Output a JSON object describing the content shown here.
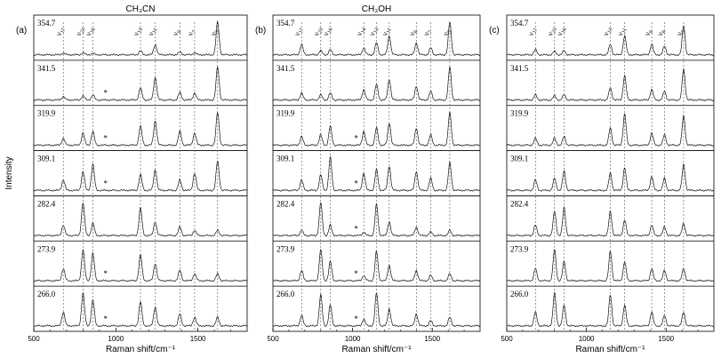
{
  "figure": {
    "x_title": "Raman shift/cm⁻¹",
    "y_title": "Intensity",
    "xlim": [
      500,
      1800
    ],
    "x_ticks": [
      500,
      1000,
      1500
    ]
  },
  "chart_data": [
    {
      "type": "line",
      "panel_label": "(a)",
      "solvent": "CH₃CN",
      "excitation_labels": [
        "354.7",
        "341.5",
        "319.9",
        "309.1",
        "282.4",
        "273.9",
        "266.0"
      ],
      "mode_labels": [
        {
          "label": "ν17",
          "x": 680
        },
        {
          "label": "ν23",
          "x": 800
        },
        {
          "label": "ν16",
          "x": 860
        },
        {
          "label": "ν13",
          "x": 1150
        },
        {
          "label": "ν11",
          "x": 1240
        },
        {
          "label": "ν8",
          "x": 1390
        },
        {
          "label": "ν7",
          "x": 1480
        },
        {
          "label": "ν5",
          "x": 1620
        }
      ],
      "series": [
        {
          "excitation": "354.7",
          "peaks": [
            [
              680,
              0.05
            ],
            [
              800,
              0.06
            ],
            [
              860,
              0.04
            ],
            [
              1150,
              0.12
            ],
            [
              1240,
              0.3
            ],
            [
              1390,
              0.08
            ],
            [
              1480,
              0.06
            ],
            [
              1620,
              0.95
            ]
          ]
        },
        {
          "excitation": "341.5",
          "peaks": [
            [
              680,
              0.1
            ],
            [
              800,
              0.12
            ],
            [
              860,
              0.14
            ],
            [
              1150,
              0.35
            ],
            [
              1240,
              0.65
            ],
            [
              1390,
              0.22
            ],
            [
              1480,
              0.2
            ],
            [
              1620,
              0.95
            ]
          ]
        },
        {
          "excitation": "319.9",
          "peaks": [
            [
              680,
              0.2
            ],
            [
              800,
              0.35
            ],
            [
              860,
              0.4
            ],
            [
              1150,
              0.55
            ],
            [
              1240,
              0.7
            ],
            [
              1390,
              0.4
            ],
            [
              1480,
              0.35
            ],
            [
              1620,
              0.95
            ]
          ]
        },
        {
          "excitation": "309.1",
          "peaks": [
            [
              680,
              0.3
            ],
            [
              800,
              0.55
            ],
            [
              860,
              0.75
            ],
            [
              1150,
              0.45
            ],
            [
              1240,
              0.6
            ],
            [
              1390,
              0.3
            ],
            [
              1480,
              0.5
            ],
            [
              1620,
              0.85
            ]
          ]
        },
        {
          "excitation": "282.4",
          "peaks": [
            [
              680,
              0.3
            ],
            [
              800,
              0.95
            ],
            [
              860,
              0.35
            ],
            [
              1150,
              0.8
            ],
            [
              1240,
              0.4
            ],
            [
              1390,
              0.25
            ],
            [
              1480,
              0.15
            ],
            [
              1620,
              0.15
            ]
          ]
        },
        {
          "excitation": "273.9",
          "peaks": [
            [
              680,
              0.35
            ],
            [
              800,
              0.9
            ],
            [
              860,
              0.8
            ],
            [
              1150,
              0.75
            ],
            [
              1240,
              0.5
            ],
            [
              1390,
              0.3
            ],
            [
              1480,
              0.2
            ],
            [
              1620,
              0.2
            ]
          ]
        },
        {
          "excitation": "266.0",
          "peaks": [
            [
              680,
              0.4
            ],
            [
              800,
              0.95
            ],
            [
              860,
              0.75
            ],
            [
              1150,
              0.7
            ],
            [
              1240,
              0.55
            ],
            [
              1390,
              0.35
            ],
            [
              1480,
              0.25
            ],
            [
              1620,
              0.25
            ]
          ]
        }
      ],
      "asterisk_rows": [
        "341.5",
        "319.9",
        "309.1",
        "273.9",
        "266.0"
      ]
    },
    {
      "type": "line",
      "panel_label": "(b)",
      "solvent": "CH₃OH",
      "excitation_labels": [
        "354.7",
        "341.5",
        "319.9",
        "309.1",
        "282.4",
        "273.9",
        "266.0"
      ],
      "mode_labels": [
        {
          "label": "ν17",
          "x": 680
        },
        {
          "label": "ν23",
          "x": 800
        },
        {
          "label": "ν16",
          "x": 860
        },
        {
          "label": "ν14",
          "x": 1070
        },
        {
          "label": "ν13",
          "x": 1150
        },
        {
          "label": "ν11",
          "x": 1230
        },
        {
          "label": "ν8",
          "x": 1400
        },
        {
          "label": "ν7",
          "x": 1490
        },
        {
          "label": "ν5",
          "x": 1610
        }
      ],
      "series": [
        {
          "excitation": "354.7",
          "peaks": [
            [
              680,
              0.3
            ],
            [
              800,
              0.12
            ],
            [
              860,
              0.15
            ],
            [
              1070,
              0.2
            ],
            [
              1150,
              0.35
            ],
            [
              1230,
              0.55
            ],
            [
              1400,
              0.35
            ],
            [
              1490,
              0.2
            ],
            [
              1610,
              0.95
            ]
          ]
        },
        {
          "excitation": "341.5",
          "peaks": [
            [
              680,
              0.2
            ],
            [
              800,
              0.15
            ],
            [
              860,
              0.2
            ],
            [
              1070,
              0.3
            ],
            [
              1150,
              0.45
            ],
            [
              1230,
              0.6
            ],
            [
              1400,
              0.4
            ],
            [
              1490,
              0.25
            ],
            [
              1610,
              0.95
            ]
          ]
        },
        {
          "excitation": "319.9",
          "peaks": [
            [
              680,
              0.25
            ],
            [
              800,
              0.3
            ],
            [
              860,
              0.55
            ],
            [
              1070,
              0.4
            ],
            [
              1150,
              0.5
            ],
            [
              1230,
              0.65
            ],
            [
              1400,
              0.5
            ],
            [
              1490,
              0.3
            ],
            [
              1610,
              0.95
            ]
          ]
        },
        {
          "excitation": "309.1",
          "peaks": [
            [
              680,
              0.3
            ],
            [
              800,
              0.45
            ],
            [
              860,
              0.95
            ],
            [
              1070,
              0.5
            ],
            [
              1150,
              0.6
            ],
            [
              1230,
              0.7
            ],
            [
              1400,
              0.55
            ],
            [
              1490,
              0.35
            ],
            [
              1610,
              0.8
            ]
          ]
        },
        {
          "excitation": "282.4",
          "peaks": [
            [
              680,
              0.15
            ],
            [
              800,
              0.95
            ],
            [
              860,
              0.3
            ],
            [
              1070,
              0.1
            ],
            [
              1150,
              0.9
            ],
            [
              1230,
              0.4
            ],
            [
              1400,
              0.25
            ],
            [
              1490,
              0.1
            ],
            [
              1610,
              0.15
            ]
          ]
        },
        {
          "excitation": "273.9",
          "peaks": [
            [
              680,
              0.3
            ],
            [
              800,
              0.9
            ],
            [
              860,
              0.55
            ],
            [
              1070,
              0.15
            ],
            [
              1150,
              0.85
            ],
            [
              1230,
              0.45
            ],
            [
              1400,
              0.3
            ],
            [
              1490,
              0.15
            ],
            [
              1610,
              0.2
            ]
          ]
        },
        {
          "excitation": "266.0",
          "peaks": [
            [
              680,
              0.3
            ],
            [
              800,
              0.9
            ],
            [
              860,
              0.6
            ],
            [
              1070,
              0.2
            ],
            [
              1150,
              0.95
            ],
            [
              1230,
              0.5
            ],
            [
              1400,
              0.35
            ],
            [
              1490,
              0.15
            ],
            [
              1610,
              0.25
            ]
          ]
        }
      ],
      "asterisk_rows": [
        "319.9",
        "309.1",
        "282.4",
        "273.9",
        "266.0"
      ]
    },
    {
      "type": "line",
      "panel_label": "(c)",
      "solvent": "",
      "excitation_labels": [
        "354.7",
        "341.5",
        "319.9",
        "309.1",
        "282.4",
        "273.9",
        "266.0"
      ],
      "mode_labels": [
        {
          "label": "ν17",
          "x": 680
        },
        {
          "label": "ν23",
          "x": 800
        },
        {
          "label": "ν16",
          "x": 860
        },
        {
          "label": "ν13",
          "x": 1150
        },
        {
          "label": "ν11",
          "x": 1240
        },
        {
          "label": "ν8",
          "x": 1410
        },
        {
          "label": "ν8",
          "x": 1490
        },
        {
          "label": "ν5",
          "x": 1610
        }
      ],
      "series": [
        {
          "excitation": "354.7",
          "peaks": [
            [
              680,
              0.15
            ],
            [
              800,
              0.1
            ],
            [
              860,
              0.12
            ],
            [
              1150,
              0.3
            ],
            [
              1240,
              0.55
            ],
            [
              1410,
              0.3
            ],
            [
              1490,
              0.25
            ],
            [
              1610,
              0.85
            ]
          ]
        },
        {
          "excitation": "341.5",
          "peaks": [
            [
              680,
              0.15
            ],
            [
              800,
              0.12
            ],
            [
              860,
              0.15
            ],
            [
              1150,
              0.35
            ],
            [
              1240,
              0.7
            ],
            [
              1410,
              0.3
            ],
            [
              1490,
              0.25
            ],
            [
              1610,
              0.9
            ]
          ]
        },
        {
          "excitation": "319.9",
          "peaks": [
            [
              680,
              0.2
            ],
            [
              800,
              0.2
            ],
            [
              860,
              0.25
            ],
            [
              1150,
              0.5
            ],
            [
              1240,
              0.9
            ],
            [
              1410,
              0.35
            ],
            [
              1490,
              0.3
            ],
            [
              1610,
              0.85
            ]
          ]
        },
        {
          "excitation": "309.1",
          "peaks": [
            [
              680,
              0.3
            ],
            [
              800,
              0.35
            ],
            [
              860,
              0.55
            ],
            [
              1150,
              0.5
            ],
            [
              1240,
              0.65
            ],
            [
              1410,
              0.4
            ],
            [
              1490,
              0.35
            ],
            [
              1610,
              0.75
            ]
          ]
        },
        {
          "excitation": "282.4",
          "peaks": [
            [
              680,
              0.3
            ],
            [
              800,
              0.7
            ],
            [
              860,
              0.8
            ],
            [
              1150,
              0.7
            ],
            [
              1240,
              0.45
            ],
            [
              1410,
              0.3
            ],
            [
              1490,
              0.25
            ],
            [
              1610,
              0.35
            ]
          ]
        },
        {
          "excitation": "273.9",
          "peaks": [
            [
              680,
              0.35
            ],
            [
              800,
              0.9
            ],
            [
              860,
              0.55
            ],
            [
              1150,
              0.85
            ],
            [
              1240,
              0.55
            ],
            [
              1410,
              0.35
            ],
            [
              1490,
              0.3
            ],
            [
              1610,
              0.35
            ]
          ]
        },
        {
          "excitation": "266.0",
          "peaks": [
            [
              680,
              0.4
            ],
            [
              800,
              0.95
            ],
            [
              860,
              0.6
            ],
            [
              1150,
              0.9
            ],
            [
              1240,
              0.6
            ],
            [
              1410,
              0.4
            ],
            [
              1490,
              0.3
            ],
            [
              1610,
              0.4
            ]
          ]
        }
      ],
      "asterisk_rows": []
    }
  ]
}
